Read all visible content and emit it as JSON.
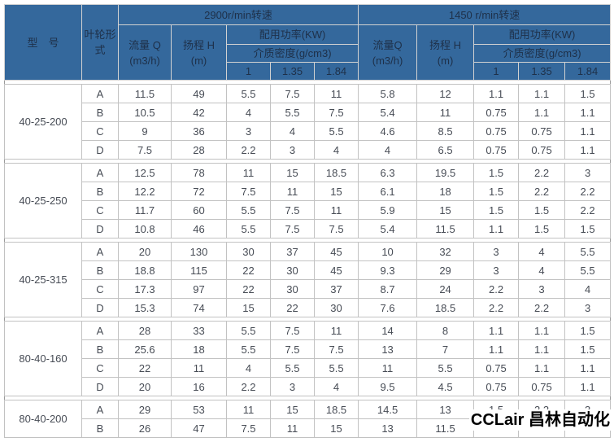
{
  "colors": {
    "header_bg": "#34689C",
    "header_text": "#1E3049",
    "body_text": "#474C55",
    "grid_line": "#C2C2C2",
    "outer_border": "#9A9A9A"
  },
  "watermark": "CCLair 昌林自动化",
  "header": {
    "model": "型　号",
    "impeller": "叶轮形式",
    "speed_2900": "2900r/min转速",
    "speed_1450": "1450 r/min转速",
    "flow_2900": "流量 Q",
    "flow_1450": "流量Q",
    "flow_unit": "(m3/h)",
    "head": "扬程 H",
    "head_unit": "(m)",
    "power": "配用功率(KW)",
    "density": "介质密度(g/cm3)",
    "density_values": [
      "1",
      "1.35",
      "1.84"
    ]
  },
  "blocks": [
    {
      "model": "40-25-200",
      "rows": [
        {
          "form": "A",
          "v": [
            "11.5",
            "49",
            "5.5",
            "7.5",
            "11",
            "5.8",
            "12",
            "1.1",
            "1.1",
            "1.5"
          ]
        },
        {
          "form": "B",
          "v": [
            "10.5",
            "42",
            "4",
            "5.5",
            "7.5",
            "5.4",
            "11",
            "0.75",
            "1.1",
            "1.1"
          ]
        },
        {
          "form": "C",
          "v": [
            "9",
            "36",
            "3",
            "4",
            "5.5",
            "4.6",
            "8.5",
            "0.75",
            "0.75",
            "1.1"
          ]
        },
        {
          "form": "D",
          "v": [
            "7.5",
            "28",
            "2.2",
            "3",
            "4",
            "4",
            "6.5",
            "0.75",
            "0.75",
            "1.1"
          ]
        }
      ]
    },
    {
      "model": "40-25-250",
      "rows": [
        {
          "form": "A",
          "v": [
            "12.5",
            "78",
            "11",
            "15",
            "18.5",
            "6.3",
            "19.5",
            "1.5",
            "2.2",
            "3"
          ]
        },
        {
          "form": "B",
          "v": [
            "12.2",
            "72",
            "7.5",
            "11",
            "15",
            "6.1",
            "18",
            "1.5",
            "2.2",
            "2.2"
          ]
        },
        {
          "form": "C",
          "v": [
            "11.7",
            "60",
            "5.5",
            "7.5",
            "11",
            "5.9",
            "15",
            "1.5",
            "1.5",
            "2.2"
          ]
        },
        {
          "form": "D",
          "v": [
            "10.8",
            "46",
            "5.5",
            "7.5",
            "7.5",
            "5.4",
            "11.5",
            "1.1",
            "1.5",
            "1.5"
          ]
        }
      ]
    },
    {
      "model": "40-25-315",
      "rows": [
        {
          "form": "A",
          "v": [
            "20",
            "130",
            "30",
            "37",
            "45",
            "10",
            "32",
            "3",
            "4",
            "5.5"
          ]
        },
        {
          "form": "B",
          "v": [
            "18.8",
            "115",
            "22",
            "30",
            "45",
            "9.3",
            "29",
            "3",
            "4",
            "5.5"
          ]
        },
        {
          "form": "C",
          "v": [
            "17.3",
            "97",
            "22",
            "30",
            "37",
            "8.7",
            "24",
            "2.2",
            "3",
            "4"
          ]
        },
        {
          "form": "D",
          "v": [
            "15.3",
            "74",
            "15",
            "22",
            "30",
            "7.6",
            "18.5",
            "2.2",
            "2.2",
            "3"
          ]
        }
      ]
    },
    {
      "model": "80-40-160",
      "rows": [
        {
          "form": "A",
          "v": [
            "28",
            "33",
            "5.5",
            "7.5",
            "11",
            "14",
            "8",
            "1.1",
            "1.1",
            "1.5"
          ]
        },
        {
          "form": "B",
          "v": [
            "25.6",
            "18",
            "5.5",
            "7.5",
            "7.5",
            "13",
            "7",
            "1.1",
            "1.1",
            "1.5"
          ]
        },
        {
          "form": "C",
          "v": [
            "22",
            "11",
            "4",
            "5.5",
            "5.5",
            "11",
            "5.5",
            "0.75",
            "1.1",
            "1.1"
          ]
        },
        {
          "form": "D",
          "v": [
            "20",
            "16",
            "2.2",
            "3",
            "4",
            "9.5",
            "4.5",
            "0.75",
            "0.75",
            "1.1"
          ]
        }
      ]
    },
    {
      "model": "80-40-200",
      "rows": [
        {
          "form": "A",
          "v": [
            "29",
            "53",
            "11",
            "15",
            "18.5",
            "14.5",
            "13",
            "1.5",
            "2.2",
            "3"
          ]
        },
        {
          "form": "B",
          "v": [
            "26",
            "47",
            "7.5",
            "11",
            "15",
            "13",
            "11.5",
            "",
            "",
            ""
          ]
        }
      ]
    }
  ]
}
